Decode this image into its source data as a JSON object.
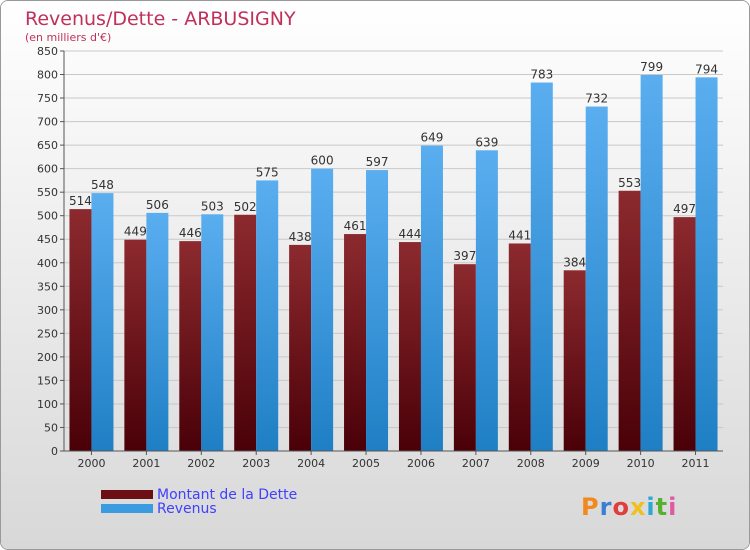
{
  "chart_data": {
    "type": "bar",
    "title": "Revenus/Dette - ARBUSIGNY",
    "subtitle": "(en milliers d'€)",
    "categories": [
      "2000",
      "2001",
      "2002",
      "2003",
      "2004",
      "2005",
      "2006",
      "2007",
      "2008",
      "2009",
      "2010",
      "2011"
    ],
    "series": [
      {
        "name": "Montant de la Dette",
        "color": "#6b0f14",
        "values": [
          514,
          449,
          446,
          502,
          438,
          461,
          444,
          397,
          441,
          384,
          553,
          497
        ]
      },
      {
        "name": "Revenus",
        "color": "#3a9be0",
        "values": [
          548,
          506,
          503,
          575,
          600,
          597,
          649,
          639,
          783,
          732,
          799,
          794
        ]
      }
    ],
    "ylim": [
      0,
      850
    ],
    "yticks": [
      0,
      50,
      100,
      150,
      200,
      250,
      300,
      350,
      400,
      450,
      500,
      550,
      600,
      650,
      700,
      750,
      800,
      850
    ],
    "grid": true,
    "legend_position": "bottom-left"
  },
  "legend": {
    "debt_label": "Montant de la Dette",
    "revenue_label": "Revenus",
    "debt_color": "#6b0f14",
    "revenue_color": "#3a9be0"
  },
  "logo": {
    "letters": [
      "P",
      "r",
      "o",
      "x",
      "i",
      "t",
      "i"
    ],
    "colors": [
      "#f08a1c",
      "#3a7fd4",
      "#e23c3c",
      "#f0c020",
      "#2aa8d8",
      "#58b030",
      "#e05aa0"
    ]
  }
}
